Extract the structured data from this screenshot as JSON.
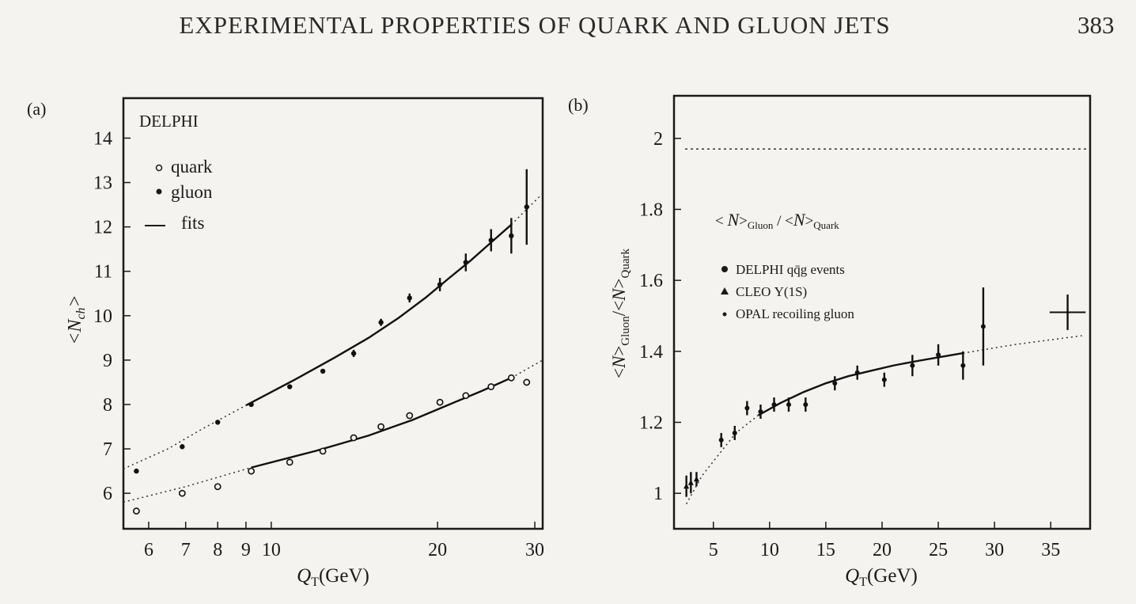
{
  "page": {
    "running_head": "EXPERIMENTAL PROPERTIES OF QUARK AND GLUON JETS",
    "page_number": "383"
  },
  "chart_data": [
    {
      "panel_label": "(a)",
      "type": "scatter",
      "xscale": "log",
      "xlabel": "Q_T(GeV)",
      "ylabel": "<N_ch>",
      "xlim": [
        5.4,
        31
      ],
      "ylim": [
        5.2,
        14.9
      ],
      "xticks": [
        6,
        7,
        8,
        9,
        10,
        20,
        30
      ],
      "yticks": [
        6,
        7,
        8,
        9,
        10,
        11,
        12,
        13,
        14
      ],
      "legend": {
        "placement": "top-left",
        "title": "DELPHI",
        "entries": [
          {
            "marker": "open-circle",
            "label": "quark"
          },
          {
            "marker": "filled-circle",
            "label": "gluon"
          },
          {
            "marker": "line",
            "label": "fits"
          }
        ]
      },
      "series": [
        {
          "name": "quark",
          "marker": "open-circle",
          "x": [
            5.7,
            6.9,
            8.0,
            9.2,
            10.8,
            12.4,
            14.1,
            15.8,
            17.8,
            20.2,
            22.5,
            25.0,
            27.2,
            29.0
          ],
          "y": [
            5.6,
            6.0,
            6.15,
            6.5,
            6.7,
            6.95,
            7.25,
            7.5,
            7.75,
            8.05,
            8.2,
            8.4,
            8.6,
            8.5
          ]
        },
        {
          "name": "gluon",
          "marker": "filled-circle",
          "x": [
            5.7,
            6.9,
            8.0,
            9.2,
            10.8,
            12.4,
            14.1,
            15.8,
            17.8,
            20.2,
            22.5,
            25.0,
            27.2,
            29.0
          ],
          "y": [
            6.5,
            7.05,
            7.6,
            8.0,
            8.4,
            8.75,
            9.15,
            9.85,
            10.4,
            10.7,
            11.2,
            11.7,
            11.8,
            12.45
          ],
          "yerr": [
            0.05,
            0.05,
            0.05,
            0.05,
            0.05,
            0.05,
            0.08,
            0.08,
            0.1,
            0.15,
            0.2,
            0.25,
            0.4,
            0.85
          ]
        }
      ],
      "fits": [
        {
          "series": "gluon",
          "x": [
            9.0,
            11,
            13,
            15,
            17,
            19,
            21,
            23,
            25,
            27.2
          ],
          "y": [
            7.98,
            8.55,
            9.05,
            9.5,
            9.95,
            10.4,
            10.85,
            11.25,
            11.65,
            12.05
          ]
        },
        {
          "series": "quark",
          "x": [
            9.2,
            12,
            15,
            18,
            21,
            24,
            27.2
          ],
          "y": [
            6.58,
            6.95,
            7.3,
            7.65,
            8.0,
            8.3,
            8.6
          ]
        }
      ],
      "fit_extrapolations": [
        {
          "series": "gluon",
          "x": [
            5.4,
            6.5,
            7.5,
            9.0
          ],
          "y": [
            6.55,
            7.0,
            7.45,
            7.98
          ]
        },
        {
          "series": "gluon",
          "x": [
            27.2,
            29,
            31
          ],
          "y": [
            12.05,
            12.4,
            12.75
          ]
        },
        {
          "series": "quark",
          "x": [
            5.4,
            7,
            9.2
          ],
          "y": [
            5.8,
            6.15,
            6.58
          ]
        },
        {
          "series": "quark",
          "x": [
            27.2,
            31
          ],
          "y": [
            8.6,
            9.0
          ]
        }
      ]
    },
    {
      "panel_label": "(b)",
      "type": "scatter",
      "xlabel": "Q_T(GeV)",
      "ylabel": "<N>_Gluon/<N>_Quark",
      "xlim": [
        1.5,
        38.5
      ],
      "ylim": [
        0.9,
        2.12
      ],
      "xticks": [
        5,
        10,
        15,
        20,
        25,
        30,
        35
      ],
      "yticks": [
        1,
        1.2,
        1.4,
        1.6,
        1.8,
        2
      ],
      "reference_line_y": 1.97,
      "annotation": "< N>Gluon / <N>Quark",
      "legend": {
        "placement": "center-left",
        "entries": [
          {
            "marker": "filled-circle",
            "label": "DELPHI qq̄g events"
          },
          {
            "marker": "filled-triangle",
            "label": "CLEO Υ(1S)"
          },
          {
            "marker": "small-dot",
            "label": "OPAL recoiling gluon"
          }
        ]
      },
      "series": [
        {
          "name": "DELPHI qq̄g events",
          "marker": "filled-circle",
          "x": [
            5.7,
            6.9,
            8.0,
            9.2,
            10.4,
            11.7,
            13.2,
            15.8,
            17.8,
            20.2,
            22.7,
            25.0,
            27.2,
            29.0
          ],
          "y": [
            1.15,
            1.17,
            1.24,
            1.23,
            1.25,
            1.25,
            1.25,
            1.31,
            1.34,
            1.32,
            1.36,
            1.39,
            1.36,
            1.47
          ],
          "yerr": [
            0.02,
            0.02,
            0.02,
            0.02,
            0.02,
            0.02,
            0.02,
            0.02,
            0.02,
            0.02,
            0.03,
            0.03,
            0.04,
            0.11
          ]
        },
        {
          "name": "CLEO Υ(1S)",
          "marker": "filled-triangle",
          "x": [
            2.6,
            3.0,
            3.5
          ],
          "y": [
            1.02,
            1.03,
            1.04
          ],
          "yerr": [
            0.03,
            0.03,
            0.02
          ]
        },
        {
          "name": "OPAL recoiling gluon",
          "marker": "cross",
          "x": [
            36.5
          ],
          "y": [
            1.51
          ],
          "xerr": [
            1.6
          ],
          "yerr": [
            0.05
          ]
        }
      ],
      "fits": [
        {
          "x": [
            9,
            11,
            13,
            15,
            17,
            19,
            21,
            23,
            25,
            27.2
          ],
          "y": [
            1.22,
            1.255,
            1.285,
            1.31,
            1.33,
            1.345,
            1.36,
            1.372,
            1.383,
            1.395
          ]
        }
      ],
      "fit_extrapolations": [
        {
          "x": [
            2.6,
            4,
            5.5,
            7,
            9
          ],
          "y": [
            0.97,
            1.05,
            1.11,
            1.17,
            1.22
          ]
        },
        {
          "x": [
            27.2,
            32,
            38
          ],
          "y": [
            1.395,
            1.42,
            1.445
          ]
        }
      ]
    }
  ]
}
